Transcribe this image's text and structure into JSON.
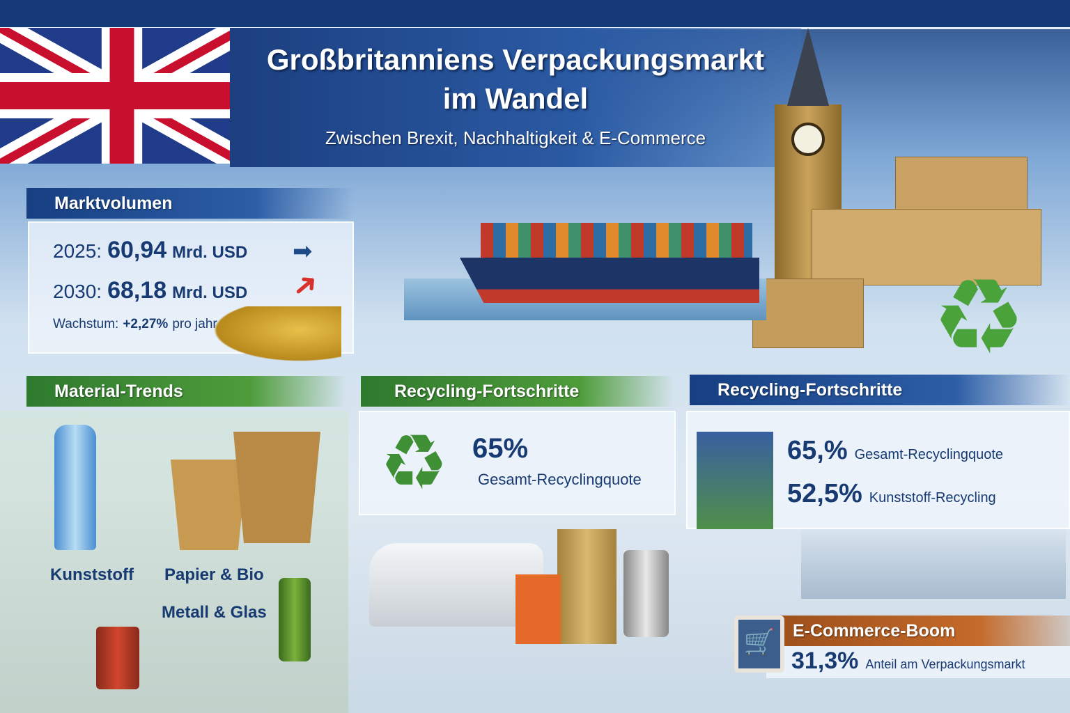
{
  "header": {
    "title_line1": "Großbritanniens Verpackungsmarkt",
    "title_line2": "im Wandel",
    "subtitle": "Zwischen Brexit, Nachhaltigkeit & E-Commerce"
  },
  "market": {
    "heading": "Marktvolumen",
    "row1_year": "2025:",
    "row1_value": "60,94",
    "row1_unit": "Mrd. USD",
    "row2_year": "2030:",
    "row2_value": "68,18",
    "row2_unit": "Mrd. USD",
    "growth_label": "Wachstum:",
    "growth_value": "+2,27%",
    "growth_unit": "pro jahr"
  },
  "materials": {
    "heading": "Material-Trends",
    "plastic": "Kunststoff",
    "paper": "Papier & Bio",
    "metal": "Metall & Glas"
  },
  "recycling_mid": {
    "heading": "Recycling-Fortschritte",
    "value": "65%",
    "label": "Gesamt-Recyclingquote"
  },
  "recycling_right": {
    "heading": "Recycling-Fortschritte",
    "value1": "65,%",
    "label1": "Gesamt-Recyclingquote",
    "value2": "52,5%",
    "label2": "Kunststoff-Recycling"
  },
  "ecommerce": {
    "heading": "E-Commerce-Boom",
    "value": "31,3%",
    "label": "Anteil am Verpackungsmarkt",
    "icon": "shopping-cart-icon"
  },
  "colors": {
    "navy": "#173a72",
    "green": "#3f8f35",
    "orange": "#c46a2a",
    "red_arrow": "#d8312b"
  }
}
